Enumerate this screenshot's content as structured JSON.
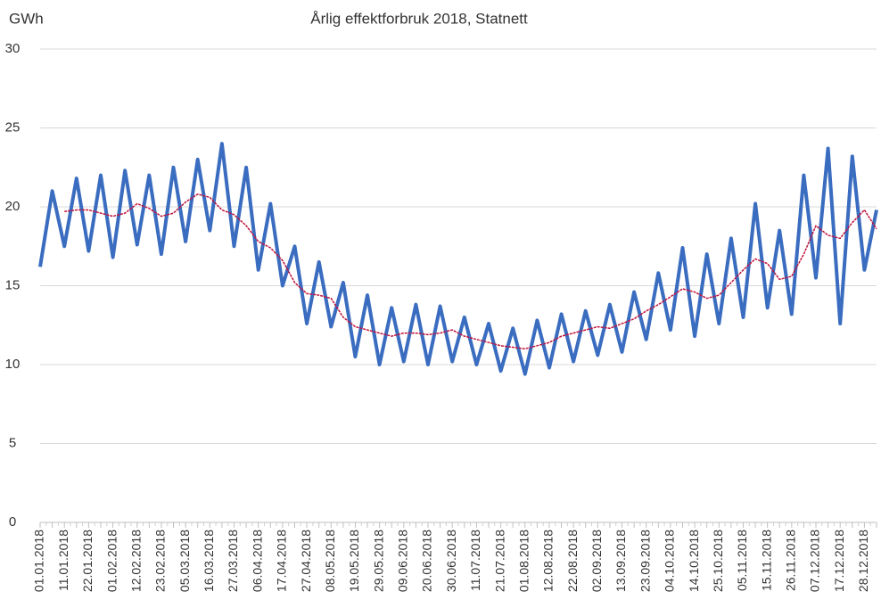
{
  "chart_data": {
    "type": "line",
    "title": "Årlig effektforbruk 2018, Statnett",
    "y_label": "GWh",
    "categories": [
      "01.01.2018",
      null,
      "11.01.2018",
      null,
      "22.01.2018",
      null,
      "01.02.2018",
      null,
      "12.02.2018",
      null,
      "23.02.2018",
      null,
      "05.03.2018",
      null,
      "16.03.2018",
      null,
      "27.03.2018",
      null,
      "06.04.2018",
      null,
      "17.04.2018",
      null,
      "27.04.2018",
      null,
      "08.05.2018",
      null,
      "19.05.2018",
      null,
      "29.05.2018",
      null,
      "09.06.2018",
      null,
      "20.06.2018",
      null,
      "30.06.2018",
      null,
      "11.07.2018",
      null,
      "21.07.2018",
      null,
      "01.08.2018",
      null,
      "12.08.2018",
      null,
      "22.08.2018",
      null,
      "02.09.2018",
      null,
      "13.09.2018",
      null,
      "23.09.2018",
      null,
      "04.10.2018",
      null,
      "14.10.2018",
      null,
      "25.10.2018",
      null,
      "05.11.2018",
      null,
      "15.11.2018",
      null,
      "26.11.2018",
      null,
      "07.12.2018",
      null,
      "17.12.2018",
      null,
      "28.12.2018",
      null
    ],
    "series": [
      {
        "color": "#3a6cc0",
        "values": [
          16.2,
          21.0,
          17.5,
          21.8,
          17.2,
          22.0,
          16.8,
          22.3,
          17.6,
          22.0,
          17.0,
          22.5,
          17.8,
          23.0,
          18.5,
          24.0,
          17.5,
          22.5,
          16.0,
          20.2,
          15.0,
          17.5,
          12.6,
          16.5,
          12.4,
          15.2,
          10.5,
          14.4,
          10.0,
          13.6,
          10.2,
          13.8,
          10.0,
          13.7,
          10.2,
          13.0,
          10.0,
          12.6,
          9.6,
          12.3,
          9.4,
          12.8,
          9.8,
          13.2,
          10.2,
          13.4,
          10.6,
          13.8,
          10.8,
          14.6,
          11.6,
          15.8,
          12.2,
          17.4,
          11.8,
          17.0,
          12.6,
          18.0,
          13.0,
          20.2,
          13.6,
          18.5,
          13.2,
          22.0,
          15.5,
          23.7,
          12.6,
          23.2,
          16.0,
          19.8
        ]
      },
      {
        "color": "#c0143c",
        "values": [
          null,
          null,
          19.7,
          19.8,
          19.8,
          19.6,
          19.4,
          19.6,
          20.2,
          19.9,
          19.4,
          19.6,
          20.3,
          20.8,
          20.6,
          19.8,
          19.5,
          18.8,
          17.8,
          17.4,
          16.6,
          15.2,
          14.5,
          14.4,
          14.2,
          13.0,
          12.4,
          12.2,
          12.0,
          11.8,
          12.0,
          12.0,
          11.9,
          12.0,
          12.2,
          11.8,
          11.6,
          11.4,
          11.2,
          11.1,
          11.0,
          11.2,
          11.4,
          11.8,
          12.0,
          12.2,
          12.4,
          12.3,
          12.6,
          12.9,
          13.4,
          13.8,
          14.3,
          14.8,
          14.6,
          14.2,
          14.4,
          15.2,
          16.0,
          16.7,
          16.4,
          15.4,
          15.6,
          17.0,
          18.8,
          18.2,
          18.0,
          19.0,
          19.8,
          18.6
        ]
      }
    ],
    "ylim": [
      0,
      30
    ],
    "yticks": [
      0,
      5,
      10,
      15,
      20,
      25,
      30
    ],
    "grid": true
  }
}
